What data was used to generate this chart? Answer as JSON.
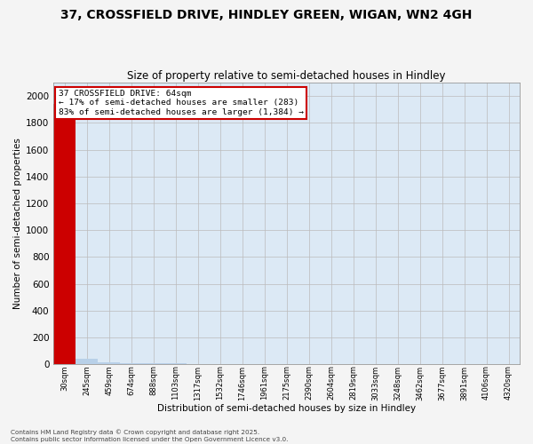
{
  "title1": "37, CROSSFIELD DRIVE, HINDLEY GREEN, WIGAN, WN2 4GH",
  "title2": "Size of property relative to semi-detached houses in Hindley",
  "xlabel": "Distribution of semi-detached houses by size in Hindley",
  "ylabel": "Number of semi-detached properties",
  "annotation_title": "37 CROSSFIELD DRIVE: 64sqm",
  "annotation_line2": "← 17% of semi-detached houses are smaller (283)",
  "annotation_line3": "83% of semi-detached houses are larger (1,384) →",
  "footer": "Contains HM Land Registry data © Crown copyright and database right 2025.\nContains public sector information licensed under the Open Government Licence v3.0.",
  "categories": [
    "30sqm",
    "245sqm",
    "459sqm",
    "674sqm",
    "888sqm",
    "1103sqm",
    "1317sqm",
    "1532sqm",
    "1746sqm",
    "1961sqm",
    "2175sqm",
    "2390sqm",
    "2604sqm",
    "2819sqm",
    "3033sqm",
    "3248sqm",
    "3462sqm",
    "3677sqm",
    "3891sqm",
    "4106sqm",
    "4320sqm"
  ],
  "values": [
    1940,
    40,
    12,
    8,
    5,
    4,
    3,
    3,
    2,
    2,
    2,
    1,
    1,
    1,
    1,
    1,
    1,
    1,
    1,
    1,
    1
  ],
  "bar_color": "#b8d0e8",
  "highlight_bar_index": 0,
  "highlight_bar_color": "#cc0000",
  "annotation_box_color": "#cc0000",
  "annotation_fill": "#ffffff",
  "background_color": "#dce9f5",
  "fig_background": "#f4f4f4",
  "grid_color": "#bbbbbb",
  "ylim": [
    0,
    2100
  ],
  "yticks": [
    0,
    200,
    400,
    600,
    800,
    1000,
    1200,
    1400,
    1600,
    1800,
    2000
  ]
}
